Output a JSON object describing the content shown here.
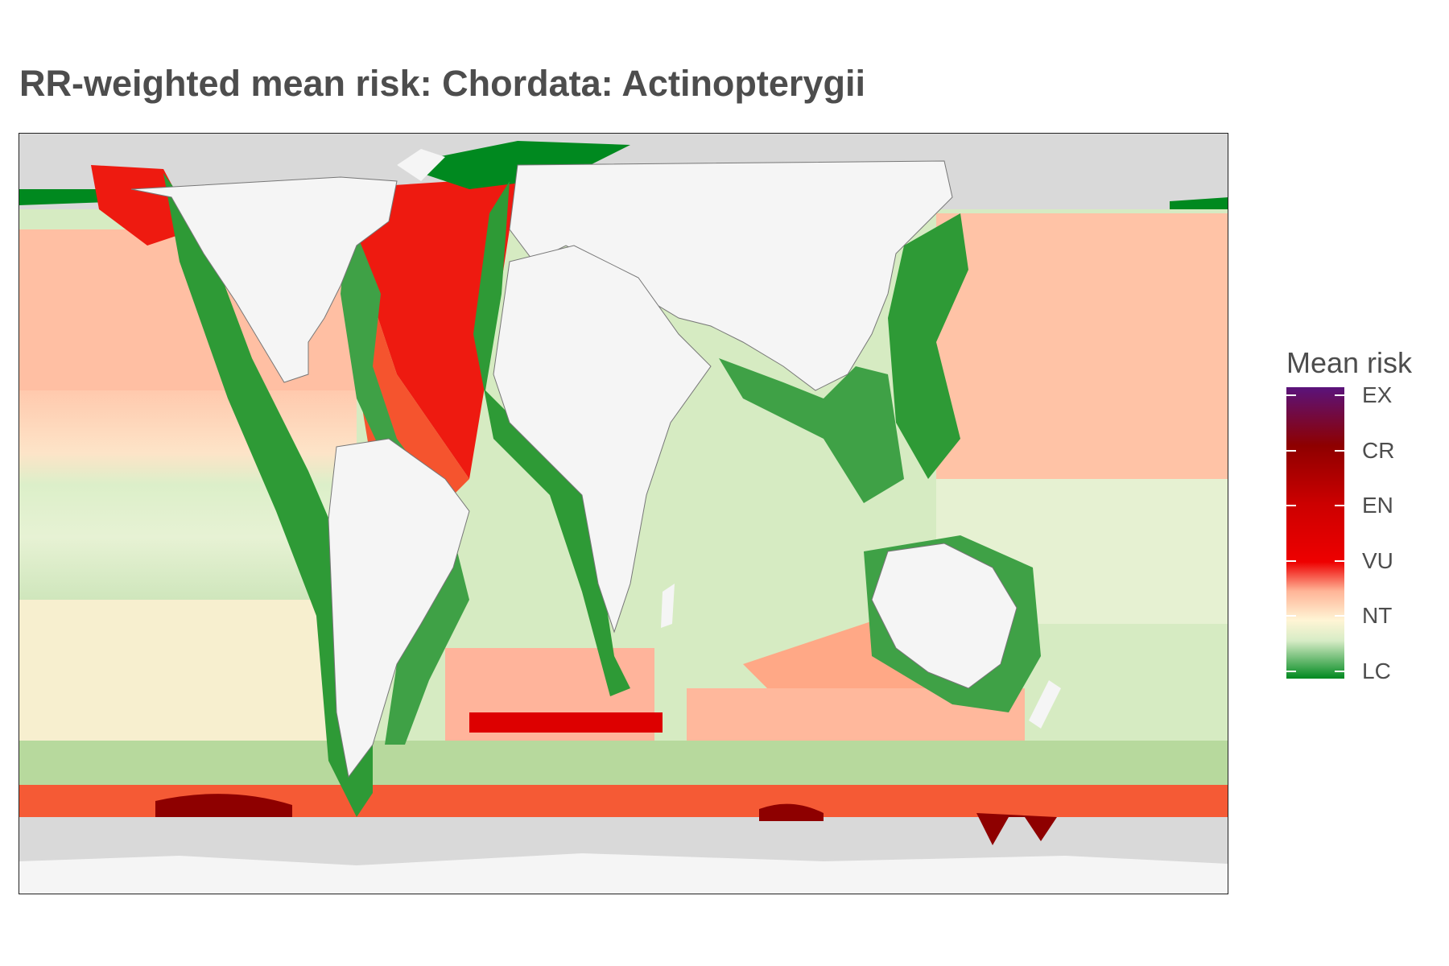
{
  "title": "RR-weighted mean risk: Chordata: Actinopterygii",
  "legend": {
    "title": "Mean risk",
    "labels": [
      "EX",
      "CR",
      "EN",
      "VU",
      "NT",
      "LC"
    ]
  },
  "colors": {
    "land": "#f5f5f5",
    "ice": "#d9d9d9",
    "LC": "#00891f",
    "NT": "#fff5d5",
    "VU": "#ee0000",
    "EN": "#cc0000",
    "CR": "#8e0000",
    "EX": "#5a137b"
  }
}
